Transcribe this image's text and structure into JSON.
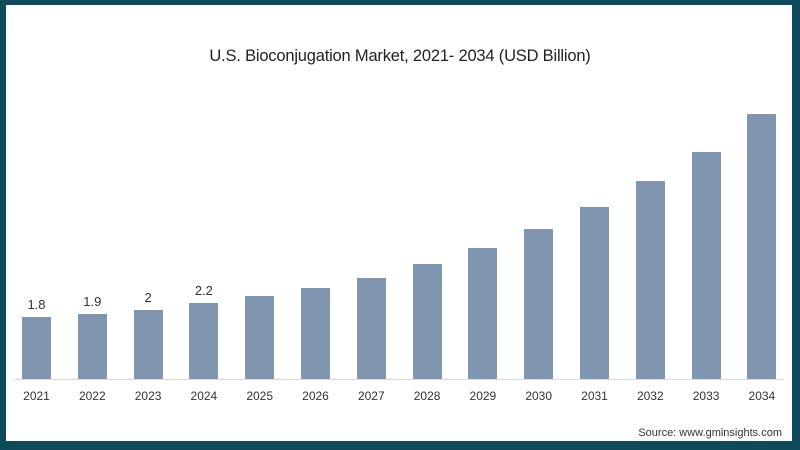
{
  "chart_data": {
    "type": "bar",
    "title": "U.S. Bioconjugation Market, 2021- 2034 (USD Billion)",
    "xlabel": "",
    "ylabel": "",
    "categories": [
      "2021",
      "2022",
      "2023",
      "2024",
      "2025",
      "2026",
      "2027",
      "2028",
      "2029",
      "2030",
      "2031",
      "2032",
      "2033",
      "2034"
    ],
    "values": [
      1.8,
      1.9,
      2.0,
      2.2,
      2.4,
      2.65,
      2.95,
      3.35,
      3.8,
      4.35,
      5.0,
      5.75,
      6.6,
      7.7
    ],
    "data_labels": [
      "1.8",
      "1.9",
      "2",
      "2.2",
      "",
      "",
      "",
      "",
      "",
      "",
      "",
      "",
      "",
      ""
    ],
    "ylim": [
      0,
      8
    ],
    "grid": false,
    "legend": null,
    "bar_color": "#8096b0",
    "source": "Source: www.gminsights.com"
  },
  "header": {
    "title": "U.S. Bioconjugation Market, 2021- 2034 (USD Billion)"
  },
  "footer": {
    "source": "Source: www.gminsights.com"
  },
  "colors": {
    "frame": "#0d4a5c",
    "bar": "#8096b0",
    "background": "#ffffff"
  }
}
